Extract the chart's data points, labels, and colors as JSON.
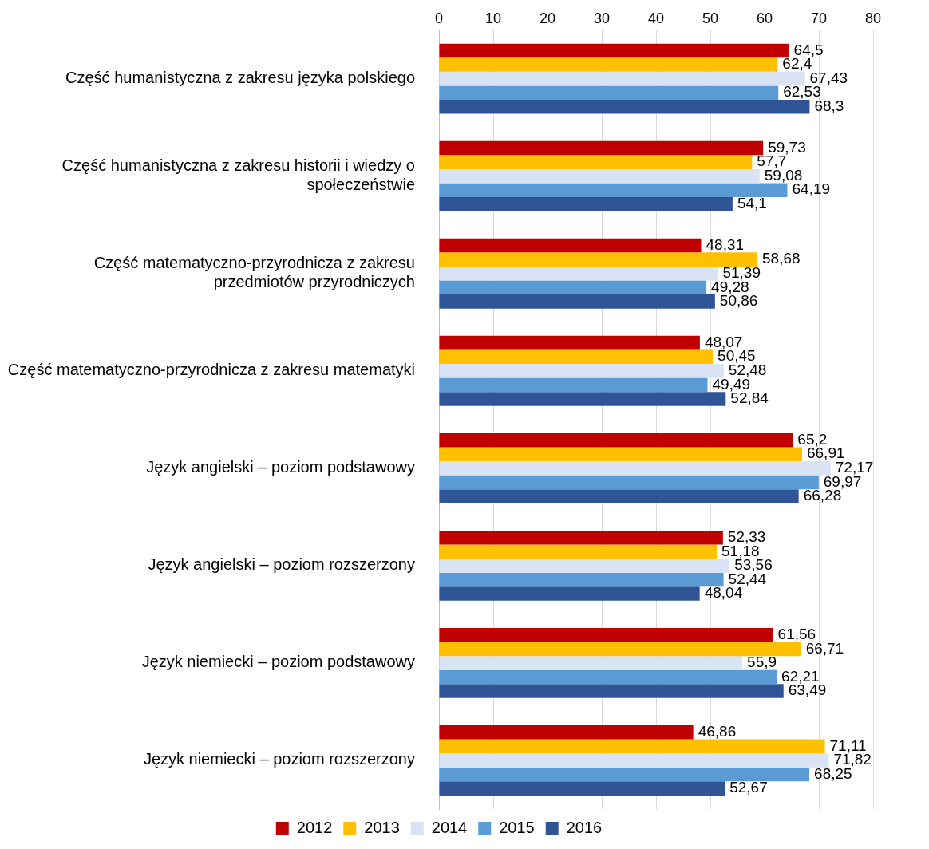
{
  "chart_data": {
    "type": "bar",
    "orientation": "horizontal",
    "categories": [
      "Część humanistyczna z zakresu języka polskiego",
      "Część humanistyczna z zakresu historii i wiedzy o społeczeństwie",
      "Część matematyczno-przyrodnicza z zakresu przedmiotów przyrodniczych",
      "Część matematyczno-przyrodnicza z zakresu matematyki",
      "Język angielski – poziom podstawowy",
      "Język angielski – poziom rozszerzony",
      "Język niemiecki – poziom podstawowy",
      "Język niemiecki – poziom rozszerzony"
    ],
    "series": [
      {
        "name": "2012",
        "color": "#c00000",
        "values": [
          64.5,
          59.73,
          48.31,
          48.07,
          65.2,
          52.33,
          61.56,
          46.86
        ],
        "value_labels": [
          "64,5",
          "59,73",
          "48,31",
          "48,07",
          "65,2",
          "52,33",
          "61,56",
          "46,86"
        ]
      },
      {
        "name": "2013",
        "color": "#ffc000",
        "values": [
          62.4,
          57.7,
          58.68,
          50.45,
          66.91,
          51.18,
          66.71,
          71.11
        ],
        "value_labels": [
          "62,4",
          "57,7",
          "58,68",
          "50,45",
          "66,91",
          "51,18",
          "66,71",
          "71,11"
        ]
      },
      {
        "name": "2014",
        "color": "#dae3f3",
        "values": [
          67.43,
          59.08,
          51.39,
          52.48,
          72.17,
          53.56,
          55.9,
          71.82
        ],
        "value_labels": [
          "67,43",
          "59,08",
          "51,39",
          "52,48",
          "72,17",
          "53,56",
          "55,9",
          "71,82"
        ]
      },
      {
        "name": "2015",
        "color": "#5b9bd5",
        "values": [
          62.53,
          64.19,
          49.28,
          49.49,
          69.97,
          52.44,
          62.21,
          68.25
        ],
        "value_labels": [
          "62,53",
          "64,19",
          "49,28",
          "49,49",
          "69,97",
          "52,44",
          "62,21",
          "68,25"
        ]
      },
      {
        "name": "2016",
        "color": "#2f5597",
        "values": [
          68.3,
          54.1,
          50.86,
          52.84,
          66.28,
          48.04,
          63.49,
          52.67
        ],
        "value_labels": [
          "68,3",
          "54,1",
          "50,86",
          "52,84",
          "66,28",
          "48,04",
          "63,49",
          "52,67"
        ]
      }
    ],
    "xlim": [
      0,
      80
    ],
    "xticks": [
      0,
      10,
      20,
      30,
      40,
      50,
      60,
      70,
      80
    ],
    "grid": "x",
    "legend": "bottom"
  }
}
